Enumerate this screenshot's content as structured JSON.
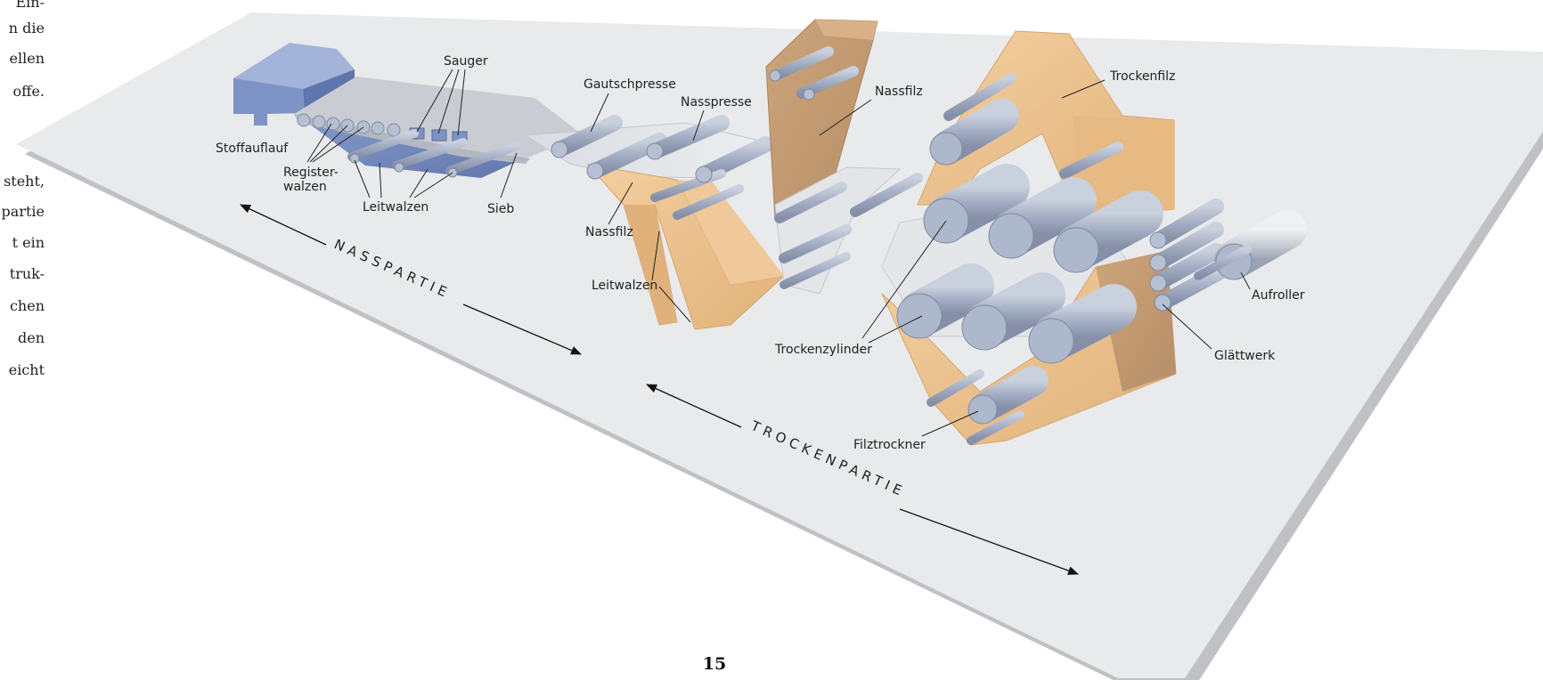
{
  "sidebar_text_fragments": [
    "Ein-",
    "n die",
    "ellen",
    "offe.",
    "steht,",
    "partie",
    "t ein",
    "truk-",
    "chen",
    "den",
    "eicht"
  ],
  "labels": {
    "stoffauflauf": "Stoffauflauf",
    "registerwalzen_line1": "Register-",
    "registerwalzen_line2": "walzen",
    "leitwalzen_wet": "Leitwalzen",
    "sieb": "Sieb",
    "sauger": "Sauger",
    "gautschpresse": "Gautschpresse",
    "nasspresse": "Nasspresse",
    "nassfilz_top": "Nassfilz",
    "nassfilz_bottom": "Nassfilz",
    "leitwalzen_press": "Leitwalzen",
    "trockenfilz": "Trockenfilz",
    "trockenzylinder": "Trockenzylinder",
    "filztrockner": "Filztrockner",
    "glaettwerk": "Glättwerk",
    "aufroller": "Aufroller"
  },
  "sections": {
    "nasspartie": "NASSPARTIE",
    "trockenpartie": "TROCKENPARTIE"
  },
  "page_number": "15",
  "colors": {
    "base_plane": "#e9eaec",
    "base_shadow": "#bfc1c5",
    "headbox": "#7e93c5",
    "felt": "#efc693",
    "roller": "#a9b3c8"
  }
}
